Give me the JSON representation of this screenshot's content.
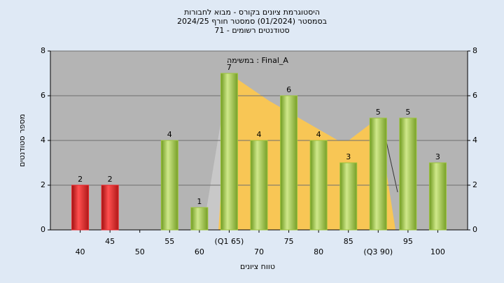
{
  "chart_data": {
    "type": "bar",
    "title": "היסטוגרמת ציונים בקורס - מבוא לחבורות",
    "subtitle": "בסמסטר  (01/2024)  סמסטר חורף 2024/25",
    "subtitle2": "סטודנטים רשומים - 71",
    "annotation": "במשימה : Final_A",
    "x_label": "טווח ציונים",
    "y_label": "מספר סטודנטים",
    "categories": [
      "40",
      "45",
      "50",
      "55",
      "60",
      "(Q1 65)",
      "70",
      "75",
      "80",
      "85",
      "(Q3 90)",
      "95",
      "100"
    ],
    "values": [
      2,
      2,
      0,
      4,
      1,
      7,
      4,
      6,
      4,
      3,
      5,
      5,
      3
    ],
    "colors": [
      "#e8262b",
      "#e8262b",
      "#9cc43c",
      "#9cc43c",
      "#9cc43c",
      "#9cc43c",
      "#9cc43c",
      "#9cc43c",
      "#9cc43c",
      "#9cc43c",
      "#9cc43c",
      "#9cc43c",
      "#9cc43c"
    ],
    "ylim": [
      0,
      8
    ],
    "yticks": [
      0,
      2,
      4,
      6,
      8
    ],
    "y2lim": [
      0,
      8
    ],
    "y2ticks": [
      0,
      2,
      4,
      6,
      8
    ],
    "grid": true
  }
}
